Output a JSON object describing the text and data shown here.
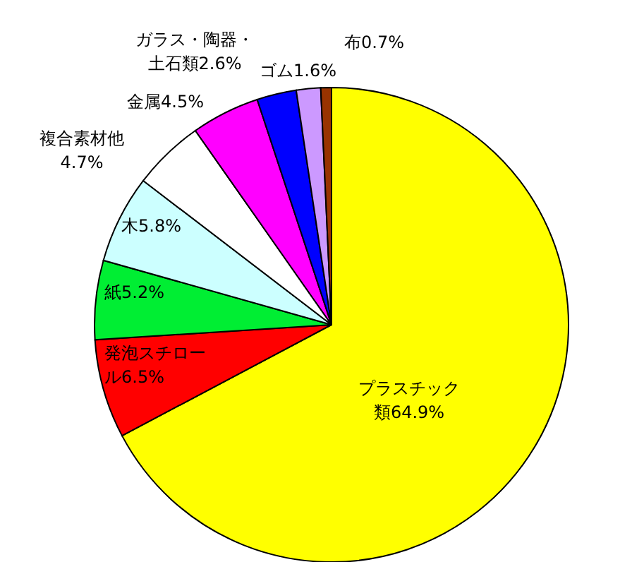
{
  "chart_data": {
    "type": "pie",
    "categories": [
      "プラスチック類",
      "発泡スチロール",
      "紙",
      "木",
      "複合素材他",
      "金属",
      "ガラス・陶器・土石類",
      "ゴム",
      "布"
    ],
    "values": [
      64.9,
      6.5,
      5.2,
      5.8,
      4.7,
      4.5,
      2.6,
      1.6,
      0.7
    ],
    "value_labels": [
      "64.9%",
      "6.5%",
      "5.2%",
      "5.8%",
      "4.7%",
      "4.5%",
      "2.6%",
      "1.6%",
      "0.7%"
    ],
    "colors": [
      "#ffff00",
      "#ff0000",
      "#00ee33",
      "#ccffff",
      "#ffffff",
      "#ff00ff",
      "#0000ff",
      "#cc99ff",
      "#993300"
    ]
  }
}
